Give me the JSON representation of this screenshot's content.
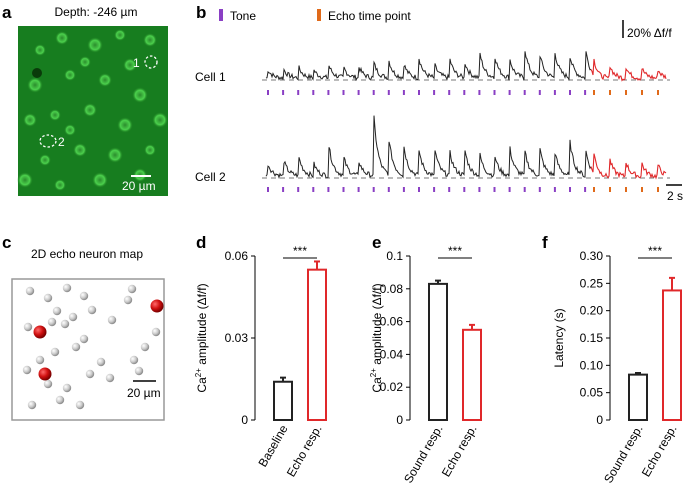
{
  "panel_letters": {
    "a": "a",
    "b": "b",
    "c": "c",
    "d": "d",
    "e": "e",
    "f": "f"
  },
  "panel_a": {
    "title": "Depth: -246 µm",
    "scale_bar": "20 µm",
    "roi_1": "1",
    "roi_2": "2",
    "image_color": "#1f9a2a"
  },
  "panel_b": {
    "legend": [
      {
        "label": "Tone",
        "color": "#8a3fc4"
      },
      {
        "label": "Echo time point",
        "color": "#e06a1a"
      }
    ],
    "scale_y": "20% Δf/f",
    "scale_x": "2 s",
    "cells": [
      {
        "label": "Cell 1",
        "tone_marks": 22,
        "echo_marks": 5
      },
      {
        "label": "Cell 2",
        "tone_marks": 22,
        "echo_marks": 5
      }
    ],
    "trace_color": "#222222",
    "echo_trace_color": "#e0282a"
  },
  "panel_c": {
    "title": "2D echo neuron map",
    "scale_bar": "20 µm",
    "echo_neuron_color": "#cc1111",
    "other_neuron_color": "#cccccc"
  },
  "chart_data": [
    {
      "type": "bar",
      "panel": "d",
      "categories": [
        "Baseline",
        "Echo resp."
      ],
      "values": [
        0.014,
        0.055
      ],
      "errors": [
        0.0015,
        0.003
      ],
      "colors": [
        "#222222",
        "#e0282a"
      ],
      "ylabel": "Ca2+ amplitude (Δf/f)",
      "ylim": [
        0,
        0.06
      ],
      "yticks": [
        "0",
        "0.03",
        "0.06"
      ],
      "significance": "***"
    },
    {
      "type": "bar",
      "panel": "e",
      "categories": [
        "Sound resp.",
        "Echo resp."
      ],
      "values": [
        0.083,
        0.055
      ],
      "errors": [
        0.002,
        0.003
      ],
      "colors": [
        "#222222",
        "#e0282a"
      ],
      "ylabel": "Ca2+ amplitude (Δf/f)",
      "ylim": [
        0,
        0.1
      ],
      "yticks": [
        "0",
        "0.02",
        "0.04",
        "0.06",
        "0.08",
        "0.1"
      ],
      "significance": "***"
    },
    {
      "type": "bar",
      "panel": "f",
      "categories": [
        "Sound resp.",
        "Echo resp."
      ],
      "values": [
        0.083,
        0.237
      ],
      "errors": [
        0.003,
        0.023
      ],
      "colors": [
        "#222222",
        "#e0282a"
      ],
      "ylabel": "Latency (s)",
      "ylim": [
        0,
        0.3
      ],
      "yticks": [
        "0",
        "0.05",
        "0.10",
        "0.15",
        "0.20",
        "0.25",
        "0.30"
      ],
      "significance": "***"
    }
  ]
}
